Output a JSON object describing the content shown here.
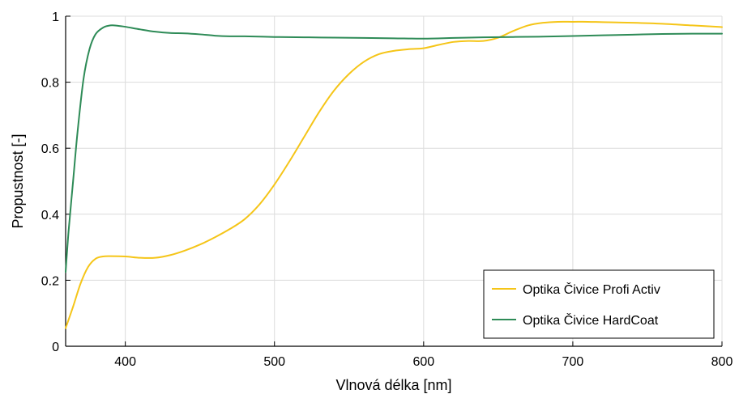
{
  "chart_data": {
    "type": "line",
    "xlabel": "Vlnová délka [nm]",
    "ylabel": "Propustnost [-]",
    "xlim": [
      360,
      800
    ],
    "ylim": [
      0,
      1
    ],
    "x_ticks": [
      "400",
      "500",
      "600",
      "700",
      "800"
    ],
    "x_tick_values": [
      400,
      500,
      600,
      700,
      800
    ],
    "y_ticks": [
      "0",
      "0.2",
      "0.4",
      "0.6",
      "0.8",
      "1"
    ],
    "y_tick_values": [
      0,
      0.2,
      0.4,
      0.6,
      0.8,
      1
    ],
    "grid": true,
    "legend_position": "bottom-right",
    "series": [
      {
        "name": "Optika Čivice Profi Activ",
        "color": "#f5c518",
        "x": [
          360,
          365,
          370,
          375,
          380,
          385,
          390,
          400,
          410,
          420,
          430,
          440,
          450,
          460,
          470,
          480,
          490,
          500,
          510,
          520,
          530,
          540,
          550,
          560,
          570,
          580,
          590,
          600,
          610,
          620,
          630,
          640,
          650,
          660,
          670,
          680,
          690,
          700,
          710,
          720,
          740,
          760,
          780,
          800
        ],
        "y": [
          0.055,
          0.12,
          0.19,
          0.24,
          0.265,
          0.272,
          0.273,
          0.272,
          0.268,
          0.268,
          0.276,
          0.29,
          0.308,
          0.33,
          0.355,
          0.385,
          0.43,
          0.49,
          0.56,
          0.635,
          0.71,
          0.775,
          0.825,
          0.862,
          0.885,
          0.895,
          0.9,
          0.903,
          0.913,
          0.922,
          0.925,
          0.925,
          0.935,
          0.955,
          0.972,
          0.98,
          0.983,
          0.983,
          0.983,
          0.982,
          0.98,
          0.977,
          0.972,
          0.967
        ]
      },
      {
        "name": "Optika Čivice HardCoat",
        "color": "#2e8b57",
        "x": [
          360,
          362,
          365,
          368,
          372,
          376,
          380,
          385,
          390,
          395,
          400,
          410,
          420,
          430,
          440,
          450,
          460,
          470,
          480,
          500,
          520,
          540,
          560,
          580,
          600,
          620,
          640,
          660,
          680,
          700,
          720,
          740,
          760,
          780,
          800
        ],
        "y": [
          0.225,
          0.35,
          0.5,
          0.65,
          0.81,
          0.9,
          0.945,
          0.965,
          0.972,
          0.971,
          0.968,
          0.96,
          0.953,
          0.949,
          0.948,
          0.945,
          0.941,
          0.939,
          0.939,
          0.937,
          0.936,
          0.935,
          0.934,
          0.933,
          0.932,
          0.934,
          0.936,
          0.937,
          0.938,
          0.94,
          0.942,
          0.944,
          0.946,
          0.947,
          0.947
        ]
      }
    ]
  }
}
